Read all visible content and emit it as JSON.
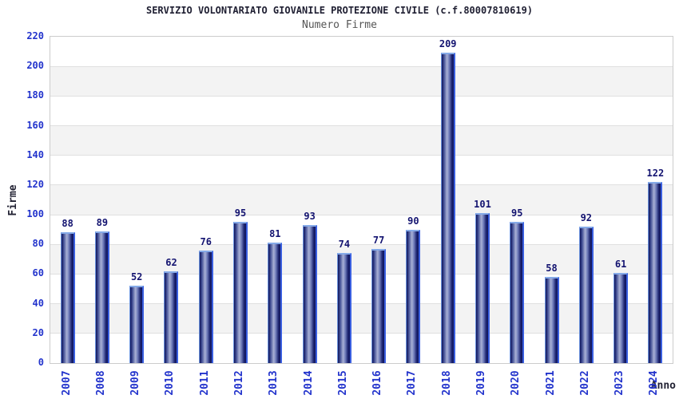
{
  "chart_data": {
    "type": "bar",
    "title": "SERVIZIO VOLONTARIATO GIOVANILE PROTEZIONE CIVILE (c.f.80007810619)",
    "subtitle": "Numero Firme",
    "xlabel": "Anno",
    "ylabel": "Firme",
    "categories": [
      "2007",
      "2008",
      "2009",
      "2010",
      "2011",
      "2012",
      "2013",
      "2014",
      "2015",
      "2016",
      "2017",
      "2018",
      "2019",
      "2020",
      "2021",
      "2022",
      "2023",
      "2024"
    ],
    "values": [
      88,
      89,
      52,
      62,
      76,
      95,
      81,
      93,
      74,
      77,
      90,
      209,
      101,
      95,
      58,
      92,
      61,
      122
    ],
    "ylim": [
      0,
      220
    ],
    "ytick_step": 20,
    "grid": true,
    "legend": "none",
    "band_fill": "alternating-horizontal",
    "colors": {
      "title": "#202033",
      "subtitle": "#555555",
      "tick_label": "#2233cc",
      "value_label": "#131370",
      "axis_title": "#222233",
      "bar_dark": "#10155a",
      "bar_mid": "#3a478f",
      "bar_light": "#a9b1d6",
      "bar_top_edge": "#85aae8",
      "bar_right_edge": "#3a5fe0",
      "band_gray": "#f3f3f3",
      "band_white": "#ffffff",
      "grid_line": "#e0e0e0",
      "plot_border": "#cccccc"
    }
  }
}
